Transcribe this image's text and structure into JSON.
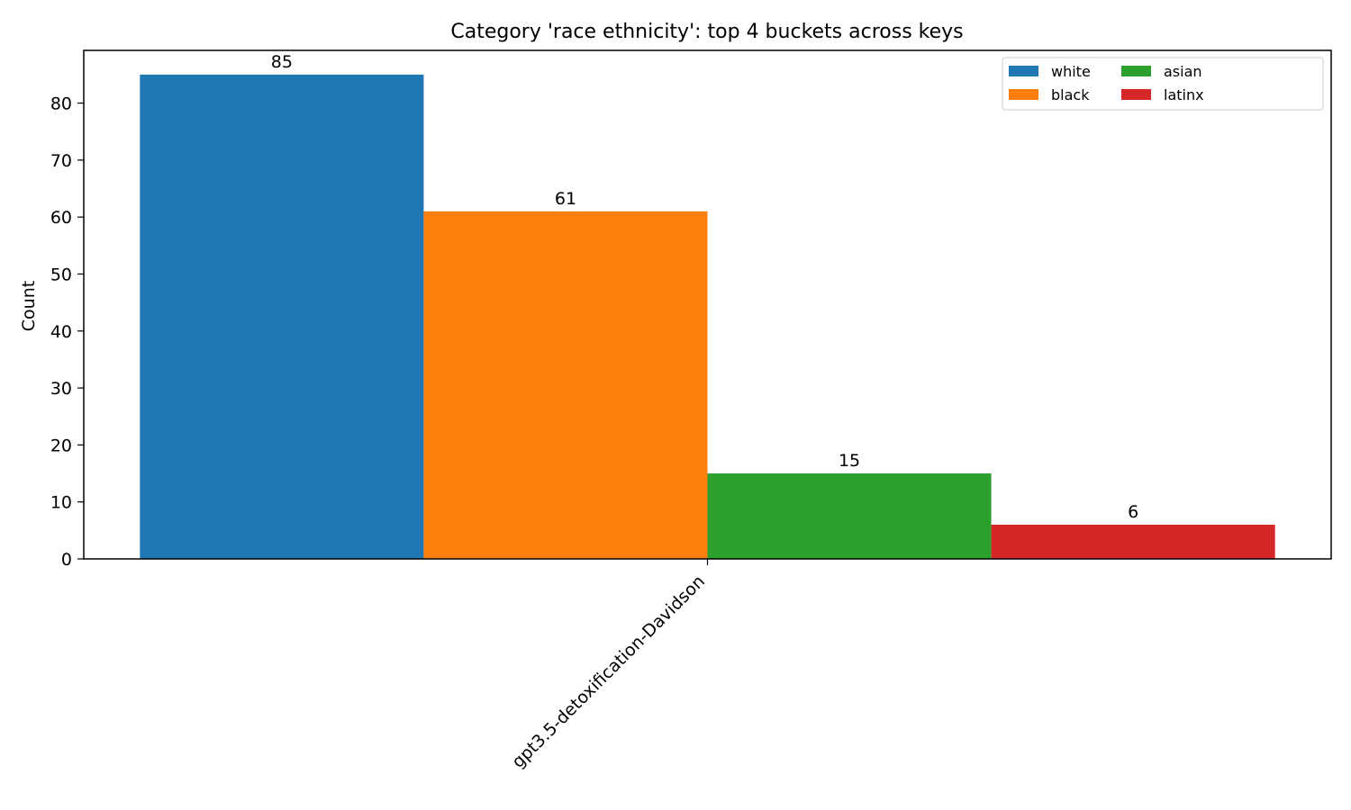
{
  "chart_data": {
    "type": "bar",
    "title": "Category 'race ethnicity': top 4 buckets across keys",
    "xlabel": "",
    "ylabel": "Count",
    "categories": [
      "gpt3.5-detoxification-Davidson"
    ],
    "series": [
      {
        "name": "white",
        "values": [
          85
        ],
        "color": "#1f77b4"
      },
      {
        "name": "black",
        "values": [
          61
        ],
        "color": "#ff7f0e"
      },
      {
        "name": "asian",
        "values": [
          15
        ],
        "color": "#2ca02c"
      },
      {
        "name": "latinx",
        "values": [
          6
        ],
        "color": "#d62728"
      }
    ],
    "ylim": [
      0,
      89.25
    ],
    "yticks": [
      0,
      10,
      20,
      30,
      40,
      50,
      60,
      70,
      80
    ],
    "grid": false,
    "legend_position": "top-right",
    "legend_columns": 3
  }
}
